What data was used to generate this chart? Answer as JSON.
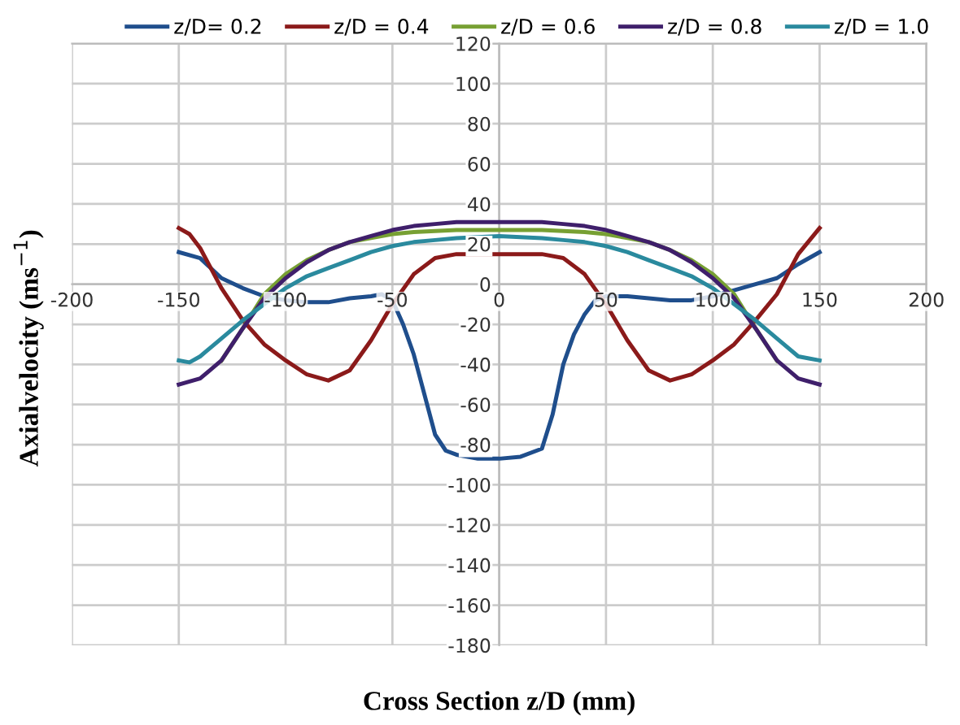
{
  "chart_data": {
    "type": "line",
    "xlabel": "Cross Section z/D (mm)",
    "ylabel": "Axialvelocity (ms$^{−1}$)",
    "xlim": [
      -200,
      200
    ],
    "xticks": [
      -200,
      -150,
      -100,
      -50,
      0,
      50,
      100,
      150,
      200
    ],
    "ylim": [
      -180,
      120
    ],
    "yticks": [
      -180,
      -160,
      -140,
      -120,
      -100,
      -80,
      -60,
      -40,
      -20,
      0,
      20,
      40,
      60,
      80,
      100,
      120
    ],
    "grid": true,
    "legend": "top",
    "marker": "none",
    "line_style": "solid",
    "series": [
      {
        "name": "z/D= 0.2",
        "color": "#1f4e8c",
        "x": [
          -150,
          -140,
          -130,
          -120,
          -110,
          -100,
          -90,
          -80,
          -70,
          -60,
          -55,
          -50,
          -45,
          -40,
          -35,
          -30,
          -25,
          -20,
          -10,
          0,
          10,
          20,
          25,
          30,
          35,
          40,
          45,
          50,
          60,
          70,
          80,
          90,
          100,
          110,
          120,
          130,
          140,
          150
        ],
        "values": [
          16,
          13,
          3,
          -2,
          -6,
          -8,
          -9,
          -9,
          -7,
          -6,
          -5,
          -8,
          -20,
          -35,
          -55,
          -75,
          -83,
          -85,
          -87,
          -87,
          -86,
          -82,
          -65,
          -40,
          -25,
          -15,
          -8,
          -6,
          -6,
          -7,
          -8,
          -8,
          -6,
          -3,
          0,
          3,
          10,
          16
        ]
      },
      {
        "name": "z/D = 0.4",
        "color": "#8b1a1a",
        "x": [
          -150,
          -145,
          -140,
          -130,
          -120,
          -110,
          -100,
          -90,
          -80,
          -70,
          -60,
          -50,
          -40,
          -30,
          -20,
          0,
          20,
          30,
          40,
          50,
          60,
          70,
          80,
          90,
          100,
          110,
          120,
          130,
          140,
          150
        ],
        "values": [
          28,
          25,
          18,
          -2,
          -18,
          -30,
          -38,
          -45,
          -48,
          -43,
          -28,
          -10,
          5,
          13,
          15,
          15,
          15,
          13,
          5,
          -10,
          -28,
          -43,
          -48,
          -45,
          -38,
          -30,
          -18,
          -5,
          15,
          28
        ]
      },
      {
        "name": "z/D = 0.6",
        "color": "#77a033",
        "x": [
          -130,
          -120,
          -110,
          -100,
          -90,
          -80,
          -70,
          -60,
          -50,
          -40,
          -20,
          0,
          20,
          40,
          50,
          60,
          70,
          80,
          90,
          100,
          110,
          120,
          130
        ],
        "values": [
          -38,
          -22,
          -5,
          5,
          12,
          17,
          21,
          23,
          25,
          26,
          27,
          27,
          27,
          26,
          25,
          23,
          21,
          17,
          12,
          5,
          -5,
          -22,
          -38
        ]
      },
      {
        "name": "z/D = 0.8",
        "color": "#3f1f6b",
        "x": [
          -150,
          -140,
          -130,
          -120,
          -110,
          -100,
          -90,
          -80,
          -70,
          -60,
          -50,
          -40,
          -30,
          -20,
          0,
          20,
          30,
          40,
          50,
          60,
          70,
          80,
          90,
          100,
          110,
          120,
          130,
          140,
          150
        ],
        "values": [
          -50,
          -47,
          -38,
          -22,
          -7,
          3,
          11,
          17,
          21,
          24,
          27,
          29,
          30,
          31,
          31,
          31,
          30,
          29,
          27,
          24,
          21,
          17,
          11,
          3,
          -7,
          -22,
          -38,
          -47,
          -50
        ]
      },
      {
        "name": "z/D = 1.0",
        "color": "#2a8a9e",
        "x": [
          -150,
          -145,
          -140,
          -130,
          -120,
          -110,
          -100,
          -90,
          -80,
          -70,
          -60,
          -50,
          -40,
          -30,
          -20,
          0,
          20,
          30,
          40,
          50,
          60,
          70,
          80,
          90,
          100,
          110,
          120,
          130,
          140,
          145,
          150
        ],
        "values": [
          -38,
          -39,
          -36,
          -27,
          -18,
          -10,
          -2,
          4,
          8,
          12,
          16,
          19,
          21,
          22,
          23,
          24,
          23,
          22,
          21,
          19,
          16,
          12,
          8,
          4,
          -2,
          -10,
          -18,
          -27,
          -36,
          -37,
          -38
        ]
      }
    ]
  }
}
